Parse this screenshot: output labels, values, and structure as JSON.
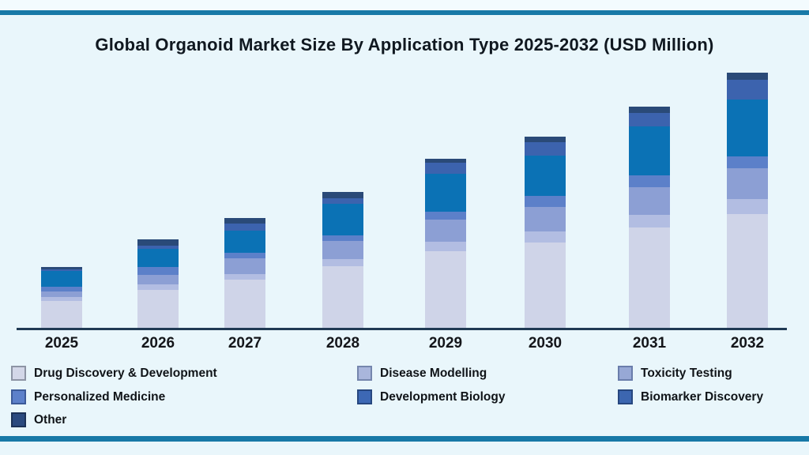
{
  "page": {
    "background": "#e9f6fb",
    "accent_bar_color": "#1879a7"
  },
  "title": "Global Organoid Market Size By Application Type 2025-2032 (USD Million)",
  "chart_data": {
    "type": "bar",
    "stacked": true,
    "title": "Global Organoid Market Size By Application Type 2025-2032 (USD Million)",
    "xlabel": "",
    "ylabel": "",
    "y_axis_shown": false,
    "grid": false,
    "value_unit": "relative bar-segment height in screen px (chart displays no numeric axis or data labels)",
    "categories": [
      "2025",
      "2026",
      "2027",
      "2028",
      "2029",
      "2030",
      "2031",
      "2032"
    ],
    "series": [
      {
        "name": "Drug Discovery & Development",
        "color": "#cfd4e8",
        "values": [
          34,
          48,
          61,
          78,
          97,
          108,
          127,
          144
        ]
      },
      {
        "name": "Disease Modelling",
        "color": "#b2bde2",
        "values": [
          5,
          7,
          7,
          9,
          12,
          14,
          16,
          19
        ]
      },
      {
        "name": "Toxicity Testing",
        "color": "#8c9fd4",
        "values": [
          7,
          12,
          20,
          23,
          28,
          31,
          35,
          39
        ]
      },
      {
        "name": "Personalized Medicine",
        "color": "#5c80c9",
        "values": [
          6,
          10,
          7,
          7,
          10,
          14,
          15,
          15
        ]
      },
      {
        "name": "Development Biology",
        "color": "#0b72b5",
        "values": [
          20,
          23,
          28,
          40,
          48,
          51,
          62,
          72
        ]
      },
      {
        "name": "Biomarker Discovery",
        "color": "#3c63ae",
        "values": [
          2,
          4,
          9,
          7,
          14,
          17,
          17,
          25
        ]
      },
      {
        "name": "Other",
        "color": "#2a4a78",
        "values": [
          3,
          8,
          7,
          8,
          5,
          7,
          8,
          9
        ]
      }
    ],
    "stack_totals": [
      77,
      112,
      139,
      172,
      214,
      242,
      280,
      323
    ],
    "ylim": [
      0,
      330
    ],
    "legend_position": "bottom, 3 columns, row-major"
  },
  "axis": {
    "line_color": "#203a54"
  },
  "legend": {
    "items": [
      {
        "label": "Drug Discovery & Development",
        "swatch": "#d3d7e8",
        "border": "#8d94a4",
        "row": 0,
        "col": 0
      },
      {
        "label": "Disease Modelling",
        "swatch": "#a9b6dc",
        "border": "#7586ad",
        "row": 0,
        "col": 1
      },
      {
        "label": "Toxicity Testing",
        "swatch": "#97a8d5",
        "border": "#6a7dab",
        "row": 0,
        "col": 2
      },
      {
        "label": "Personalized Medicine",
        "swatch": "#5c80ca",
        "border": "#3c5a99",
        "row": 1,
        "col": 0
      },
      {
        "label": "Development Biology",
        "swatch": "#3d68b5",
        "border": "#27477f",
        "row": 1,
        "col": 1
      },
      {
        "label": "Biomarker Discovery",
        "swatch": "#3c66b0",
        "border": "#27477f",
        "row": 1,
        "col": 2
      },
      {
        "label": "Other",
        "swatch": "#2b4a7f",
        "border": "#1c3257",
        "row": 2,
        "col": 0
      }
    ]
  }
}
